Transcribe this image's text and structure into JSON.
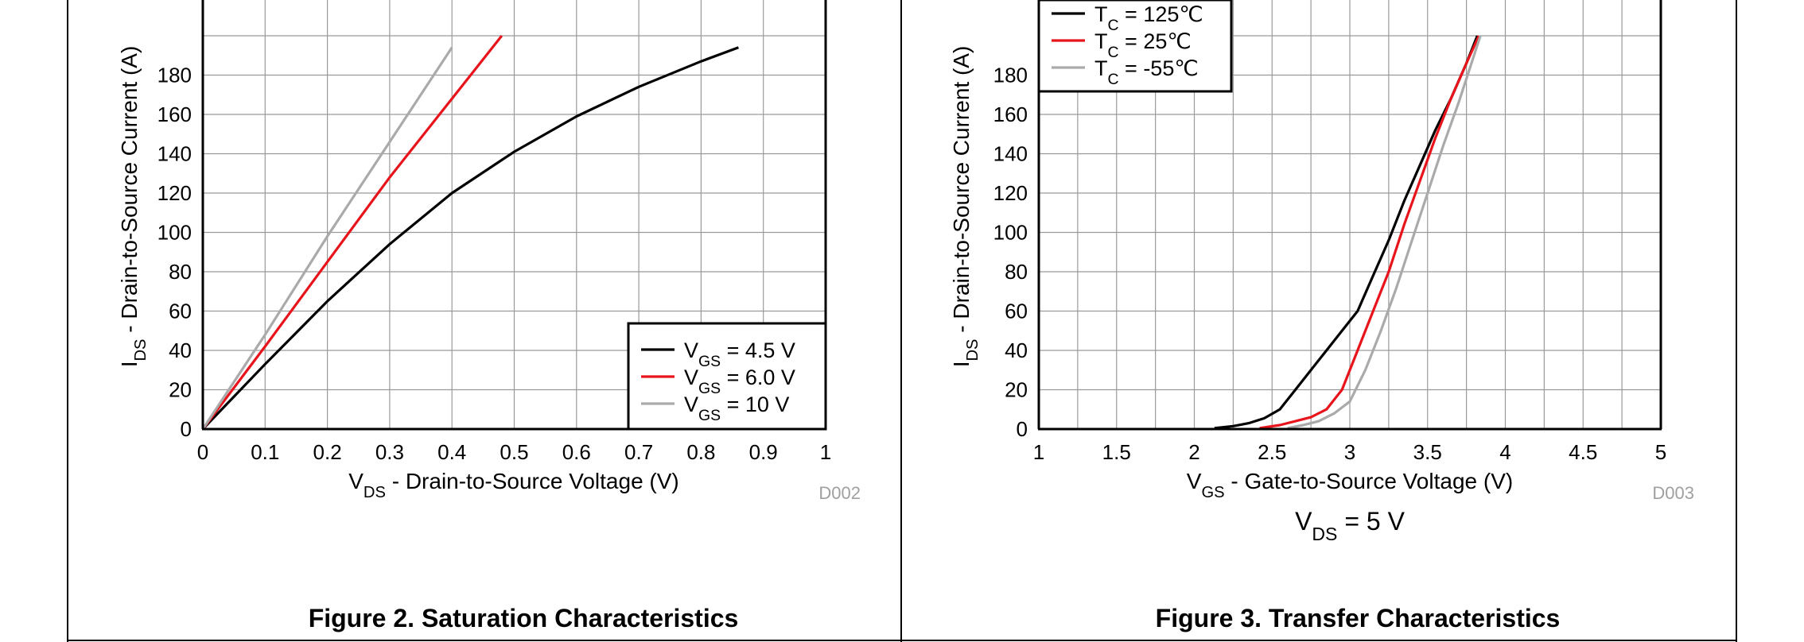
{
  "charts": [
    {
      "id": "fig2",
      "chart_data": {
        "type": "line",
        "title": "",
        "xlabel": {
          "main": "V",
          "sub": "DS",
          "rest": " - Drain-to-Source Voltage (V)"
        },
        "ylabel": {
          "main": "I",
          "sub": "DS",
          "rest": " - Drain-to-Source Current (A)"
        },
        "xlim": [
          0,
          1
        ],
        "ylim": [
          0,
          200
        ],
        "x_ticks": [
          "0",
          "0.1",
          "0.2",
          "0.3",
          "0.4",
          "0.5",
          "0.6",
          "0.7",
          "0.8",
          "0.9",
          "1"
        ],
        "y_ticks": [
          "0",
          "20",
          "40",
          "60",
          "80",
          "100",
          "120",
          "140",
          "160",
          "180"
        ],
        "grid": true,
        "legend_position": "bottom-right",
        "series": [
          {
            "name": {
              "main": "V",
              "sub": "GS",
              "rest": " = 4.5 V"
            },
            "color": "#000000",
            "x": [
              0,
              0.1,
              0.2,
              0.3,
              0.4,
              0.5,
              0.6,
              0.7,
              0.8,
              0.86
            ],
            "y": [
              0,
              33,
              65,
              94,
              120,
              141,
              159,
              174,
              187,
              194
            ]
          },
          {
            "name": {
              "main": "V",
              "sub": "GS",
              "rest": " = 6.0 V"
            },
            "color": "#e8141b",
            "x": [
              0,
              0.1,
              0.2,
              0.3,
              0.4,
              0.48
            ],
            "y": [
              0,
              42,
              85,
              128,
              168,
              200
            ]
          },
          {
            "name": {
              "main": "V",
              "sub": "GS",
              "rest": " = 10 V"
            },
            "color": "#aaaaaa",
            "x": [
              0,
              0.1,
              0.2,
              0.3,
              0.4
            ],
            "y": [
              0,
              48,
              98,
              146,
              194
            ]
          }
        ]
      },
      "code": "D002",
      "condition": null,
      "caption": "Figure 2. Saturation Characteristics"
    },
    {
      "id": "fig3",
      "chart_data": {
        "type": "line",
        "title": "",
        "xlabel": {
          "main": "V",
          "sub": "GS",
          "rest": " - Gate-to-Source Voltage (V)"
        },
        "ylabel": {
          "main": "I",
          "sub": "DS",
          "rest": " - Drain-to-Source Current (A)"
        },
        "xlim": [
          1,
          5
        ],
        "ylim": [
          0,
          200
        ],
        "x_ticks": [
          "1",
          "1.5",
          "2",
          "2.5",
          "3",
          "3.5",
          "4",
          "4.5",
          "5"
        ],
        "y_ticks": [
          "0",
          "20",
          "40",
          "60",
          "80",
          "100",
          "120",
          "140",
          "160",
          "180"
        ],
        "grid": true,
        "legend_position": "top-left",
        "series": [
          {
            "name": {
              "main": "T",
              "sub": "C",
              "rest": " = 125℃"
            },
            "color": "#000000",
            "x": [
              2.13,
              2.25,
              2.35,
              2.45,
              2.55,
              2.65,
              2.75,
              2.85,
              2.95,
              3.05,
              3.15,
              3.25,
              3.35,
              3.45,
              3.55,
              3.65,
              3.75,
              3.82
            ],
            "y": [
              0.5,
              1.5,
              3,
              5.5,
              10,
              20,
              30,
              40,
              50,
              60,
              78,
              96,
              116,
              134,
              152,
              168,
              186,
              200
            ]
          },
          {
            "name": {
              "main": "T",
              "sub": "C",
              "rest": " = 25℃"
            },
            "color": "#e8141b",
            "x": [
              2.42,
              2.55,
              2.65,
              2.75,
              2.85,
              2.95,
              3.05,
              3.15,
              3.25,
              3.35,
              3.45,
              3.55,
              3.65,
              3.75,
              3.83
            ],
            "y": [
              0.5,
              2,
              4,
              6,
              10,
              20,
              40,
              60,
              80,
              104,
              126,
              148,
              168,
              186,
              200
            ]
          },
          {
            "name": {
              "main": "T",
              "sub": "C",
              "rest": " = -55℃"
            },
            "color": "#aaaaaa",
            "x": [
              2.6,
              2.7,
              2.8,
              2.9,
              3.0,
              3.1,
              3.2,
              3.3,
              3.4,
              3.5,
              3.6,
              3.7,
              3.84
            ],
            "y": [
              0.5,
              2,
              4,
              8,
              14,
              30,
              50,
              72,
              96,
              120,
              144,
              166,
              200
            ]
          }
        ]
      },
      "code": "D003",
      "condition": {
        "main": "V",
        "sub": "DS",
        "rest": " = 5 V"
      },
      "caption": "Figure 3. Transfer Characteristics"
    }
  ]
}
